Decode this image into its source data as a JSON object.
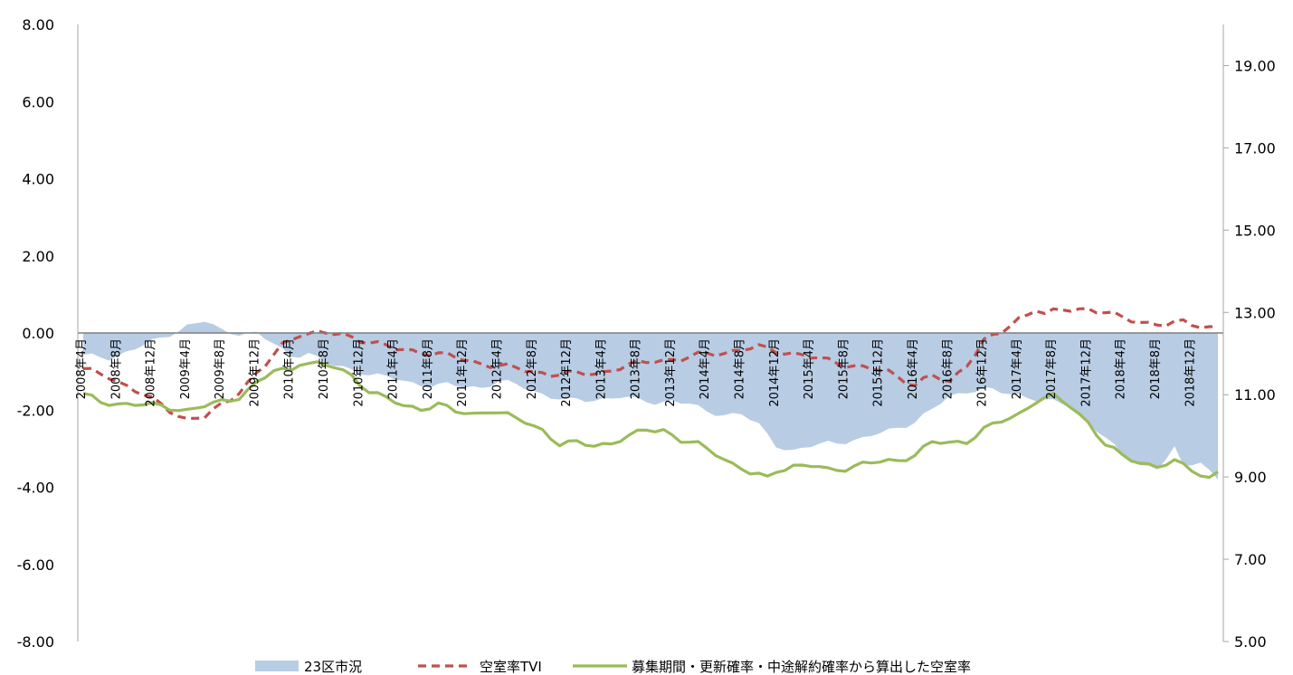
{
  "chart_data": {
    "type": "area",
    "title": "",
    "xlabel": "",
    "ylabel_left": "",
    "ylabel_right": "",
    "left_axis": {
      "range": [
        -8,
        8
      ],
      "ticks": [
        8,
        6,
        4,
        2,
        0,
        -2,
        -4,
        -6,
        -8
      ],
      "tick_labels": [
        "8.00",
        "6.00",
        "4.00",
        "2.00",
        "0.00",
        "-2.00",
        "-4.00",
        "-6.00",
        "-8.00"
      ]
    },
    "right_axis": {
      "range": [
        5,
        20
      ],
      "ticks": [
        19,
        17,
        15,
        13,
        11,
        9,
        7,
        5
      ],
      "tick_labels": [
        "19.00",
        "17.00",
        "15.00",
        "13.00",
        "11.00",
        "9.00",
        "7.00",
        "5.00"
      ]
    },
    "grid": false,
    "legend_position": "bottom",
    "category_labels": [
      "2008年4月",
      "2008年8月",
      "2008年12月",
      "2009年4月",
      "2009年8月",
      "2009年12月",
      "2010年4月",
      "2010年8月",
      "2010年12月",
      "2011年4月",
      "2011年8月",
      "2011年12月",
      "2012年4月",
      "2012年8月",
      "2012年12月",
      "2013年4月",
      "2013年8月",
      "2013年12月",
      "2014年4月",
      "2014年8月",
      "2014年12月",
      "2015年4月",
      "2015年8月",
      "2015年12月",
      "2016年4月",
      "2016年8月",
      "2016年12月",
      "2017年4月",
      "2017年8月",
      "2017年12月",
      "2018年4月",
      "2018年8月",
      "2018年12月"
    ],
    "label_every": 4,
    "months_count": 132,
    "series": [
      {
        "name": "23区市況",
        "kind": "area",
        "axis": "left",
        "color": "#b8cce4",
        "keyframes": [
          [
            0,
            -0.6
          ],
          [
            3,
            -0.65
          ],
          [
            6,
            -0.4
          ],
          [
            9,
            -0.15
          ],
          [
            12,
            0.2
          ],
          [
            14,
            0.3
          ],
          [
            16,
            0.05
          ],
          [
            18,
            0.0
          ],
          [
            20,
            0.0
          ],
          [
            22,
            -0.3
          ],
          [
            24,
            -0.6
          ],
          [
            26,
            -0.5
          ],
          [
            28,
            -0.8
          ],
          [
            30,
            -0.9
          ],
          [
            32,
            -1.0
          ],
          [
            34,
            -1.1
          ],
          [
            36,
            -1.2
          ],
          [
            38,
            -1.3
          ],
          [
            40,
            -1.35
          ],
          [
            42,
            -1.35
          ],
          [
            44,
            -1.4
          ],
          [
            46,
            -1.4
          ],
          [
            48,
            -1.25
          ],
          [
            50,
            -1.35
          ],
          [
            52,
            -1.5
          ],
          [
            54,
            -1.65
          ],
          [
            56,
            -1.75
          ],
          [
            58,
            -1.75
          ],
          [
            60,
            -1.7
          ],
          [
            62,
            -1.65
          ],
          [
            64,
            -1.75
          ],
          [
            66,
            -1.8
          ],
          [
            68,
            -1.75
          ],
          [
            70,
            -1.85
          ],
          [
            72,
            -2.05
          ],
          [
            74,
            -2.1
          ],
          [
            76,
            -2.1
          ],
          [
            78,
            -2.4
          ],
          [
            80,
            -2.9
          ],
          [
            82,
            -3.05
          ],
          [
            84,
            -2.95
          ],
          [
            86,
            -2.85
          ],
          [
            88,
            -2.8
          ],
          [
            90,
            -2.75
          ],
          [
            92,
            -2.6
          ],
          [
            94,
            -2.45
          ],
          [
            96,
            -2.3
          ],
          [
            98,
            -2.0
          ],
          [
            100,
            -1.65
          ],
          [
            102,
            -1.5
          ],
          [
            104,
            -1.45
          ],
          [
            106,
            -1.55
          ],
          [
            108,
            -1.6
          ],
          [
            110,
            -1.7
          ],
          [
            112,
            -1.8
          ],
          [
            114,
            -1.9
          ],
          [
            116,
            -2.3
          ],
          [
            118,
            -2.7
          ],
          [
            120,
            -3.2
          ],
          [
            122,
            -3.4
          ],
          [
            124,
            -3.5
          ],
          [
            126,
            -3.0
          ],
          [
            127,
            -3.5
          ],
          [
            129,
            -3.3
          ],
          [
            131,
            -3.8
          ]
        ]
      },
      {
        "name": "空室率TVI",
        "kind": "line",
        "axis": "right",
        "color": "#c0504d",
        "keyframes": [
          [
            0,
            11.6
          ],
          [
            3,
            11.45
          ],
          [
            6,
            11.1
          ],
          [
            9,
            10.75
          ],
          [
            12,
            10.4
          ],
          [
            14,
            10.45
          ],
          [
            17,
            10.9
          ],
          [
            19,
            11.3
          ],
          [
            21,
            11.7
          ],
          [
            23,
            12.2
          ],
          [
            25,
            12.5
          ],
          [
            27,
            12.5
          ],
          [
            30,
            12.45
          ],
          [
            33,
            12.3
          ],
          [
            36,
            12.1
          ],
          [
            39,
            12.05
          ],
          [
            42,
            11.95
          ],
          [
            45,
            11.8
          ],
          [
            48,
            11.7
          ],
          [
            51,
            11.6
          ],
          [
            54,
            11.5
          ],
          [
            57,
            11.5
          ],
          [
            60,
            11.55
          ],
          [
            63,
            11.7
          ],
          [
            66,
            11.85
          ],
          [
            69,
            11.85
          ],
          [
            72,
            12.0
          ],
          [
            75,
            12.05
          ],
          [
            78,
            12.15
          ],
          [
            81,
            12.05
          ],
          [
            84,
            11.9
          ],
          [
            87,
            11.8
          ],
          [
            90,
            11.65
          ],
          [
            93,
            11.55
          ],
          [
            96,
            11.25
          ],
          [
            98,
            11.45
          ],
          [
            100,
            11.3
          ],
          [
            102,
            11.75
          ],
          [
            104,
            12.3
          ],
          [
            106,
            12.5
          ],
          [
            108,
            12.85
          ],
          [
            110,
            13.1
          ],
          [
            111,
            12.95
          ],
          [
            113,
            13.05
          ],
          [
            116,
            13.1
          ],
          [
            118,
            13.0
          ],
          [
            120,
            12.85
          ],
          [
            123,
            12.75
          ],
          [
            125,
            12.7
          ],
          [
            127,
            12.75
          ],
          [
            130,
            12.65
          ],
          [
            131,
            12.65
          ]
        ]
      },
      {
        "name": "募集期間・更新確率・中途解約確率から算出した空室率",
        "kind": "line",
        "axis": "left",
        "color": "#9bbb59",
        "keyframes": [
          [
            0,
            -1.6
          ],
          [
            2,
            -1.8
          ],
          [
            6,
            -1.85
          ],
          [
            9,
            -1.9
          ],
          [
            12,
            -2.0
          ],
          [
            15,
            -1.85
          ],
          [
            18,
            -1.65
          ],
          [
            20,
            -1.3
          ],
          [
            22,
            -1.0
          ],
          [
            24,
            -0.95
          ],
          [
            25,
            -0.75
          ],
          [
            27,
            -0.8
          ],
          [
            29,
            -0.9
          ],
          [
            31,
            -1.1
          ],
          [
            33,
            -1.5
          ],
          [
            35,
            -1.7
          ],
          [
            37,
            -1.9
          ],
          [
            39,
            -1.95
          ],
          [
            41,
            -1.85
          ],
          [
            43,
            -2.05
          ],
          [
            45,
            -2.1
          ],
          [
            47,
            -2.0
          ],
          [
            49,
            -2.15
          ],
          [
            51,
            -2.3
          ],
          [
            53,
            -2.5
          ],
          [
            55,
            -2.9
          ],
          [
            57,
            -2.85
          ],
          [
            59,
            -2.9
          ],
          [
            61,
            -2.85
          ],
          [
            63,
            -2.7
          ],
          [
            65,
            -2.5
          ],
          [
            67,
            -2.5
          ],
          [
            69,
            -2.8
          ],
          [
            71,
            -2.9
          ],
          [
            73,
            -3.1
          ],
          [
            75,
            -3.4
          ],
          [
            77,
            -3.65
          ],
          [
            79,
            -3.75
          ],
          [
            80,
            -3.55
          ],
          [
            82,
            -3.45
          ],
          [
            84,
            -3.45
          ],
          [
            86,
            -3.55
          ],
          [
            88,
            -3.5
          ],
          [
            90,
            -3.4
          ],
          [
            92,
            -3.35
          ],
          [
            94,
            -3.3
          ],
          [
            96,
            -3.15
          ],
          [
            98,
            -2.85
          ],
          [
            100,
            -2.85
          ],
          [
            102,
            -2.8
          ],
          [
            104,
            -2.5
          ],
          [
            106,
            -2.3
          ],
          [
            108,
            -2.1
          ],
          [
            110,
            -1.75
          ],
          [
            112,
            -1.65
          ],
          [
            114,
            -1.9
          ],
          [
            116,
            -2.3
          ],
          [
            118,
            -2.9
          ],
          [
            120,
            -3.2
          ],
          [
            122,
            -3.35
          ],
          [
            124,
            -3.45
          ],
          [
            126,
            -3.35
          ],
          [
            128,
            -3.55
          ],
          [
            130,
            -3.75
          ],
          [
            131,
            -3.6
          ]
        ]
      }
    ]
  }
}
